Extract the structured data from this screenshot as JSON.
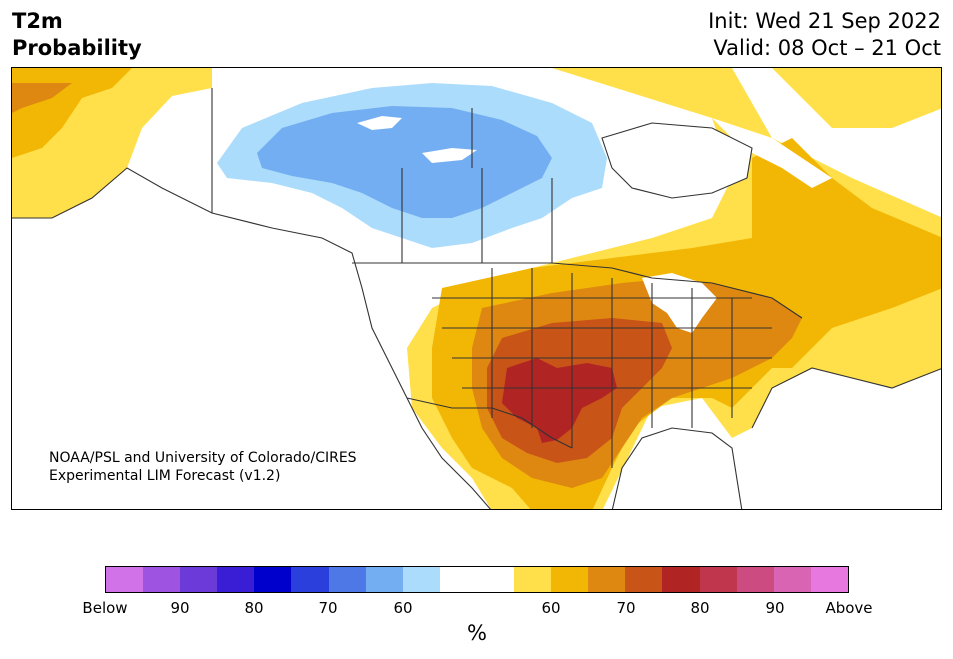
{
  "title": {
    "line1": "T2m",
    "line2": "Probability"
  },
  "init": {
    "line1": "Init: Wed 21 Sep 2022",
    "line2": "Valid: 08 Oct – 21 Oct"
  },
  "credit": {
    "line1": "NOAA/PSL and University of Colorado/CIRES",
    "line2": "Experimental LIM Forecast (v1.2)"
  },
  "colorbar": {
    "colors": [
      "#d272e8",
      "#9e54e0",
      "#6b3ad8",
      "#3a1ed6",
      "#0000cd",
      "#2a3fdc",
      "#4e78e6",
      "#74aef2",
      "#acdcfb",
      "#ffffff",
      "#ffffff",
      "#ffe04a",
      "#f2b705",
      "#de8811",
      "#c85418",
      "#b02424",
      "#c0364c",
      "#cc4c82",
      "#d964b4",
      "#e678df"
    ],
    "tick_labels": [
      "Below",
      "90",
      "80",
      "70",
      "60",
      "60",
      "70",
      "80",
      "90",
      "Above"
    ],
    "unit": "%"
  },
  "legend_colors": {
    "above_60": "#ffe04a",
    "above_65": "#f2b705",
    "above_70": "#de8811",
    "above_75": "#c85418",
    "above_80": "#b02424",
    "below_60": "#acdcfb",
    "below_65": "#74aef2"
  }
}
